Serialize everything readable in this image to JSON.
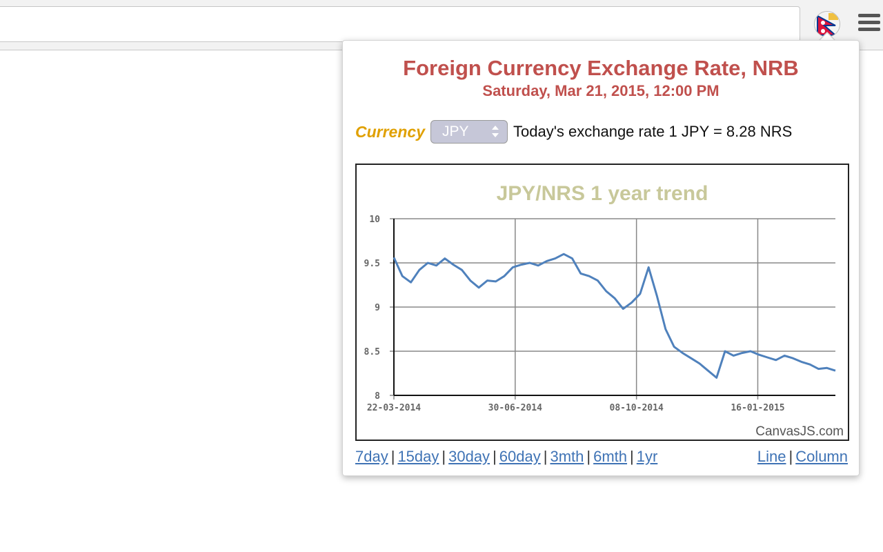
{
  "popup": {
    "title": "Foreign Currency Exchange Rate, NRB",
    "subtitle": "Saturday, Mar 21, 2015, 12:00 PM",
    "currency_label": "Currency",
    "selected_currency": "JPY",
    "rate_text": "Today's exchange rate 1 JPY = 8.28 NRS",
    "range_links": [
      "7day",
      "15day",
      "30day",
      "60day",
      "3mth",
      "6mth",
      "1yr"
    ],
    "type_links": [
      "Line",
      "Column"
    ]
  },
  "chart_data": {
    "type": "line",
    "title": "JPY/NRS 1 year trend",
    "credit": "CanvasJS.com",
    "x_ticks": [
      "22-03-2014",
      "30-06-2014",
      "08-10-2014",
      "16-01-2015"
    ],
    "y_ticks": [
      "8",
      "8.5",
      "9",
      "9.5",
      "10"
    ],
    "ylim": [
      8,
      10
    ],
    "x_range": [
      "2014-03-22",
      "2015-03-21"
    ],
    "grid": true,
    "series": [
      {
        "x": [
          "2014-03-22",
          "2014-03-29",
          "2014-04-05",
          "2014-04-12",
          "2014-04-19",
          "2014-04-26",
          "2014-05-03",
          "2014-05-10",
          "2014-05-17",
          "2014-05-24",
          "2014-05-31",
          "2014-06-07",
          "2014-06-14",
          "2014-06-21",
          "2014-06-28",
          "2014-07-05",
          "2014-07-12",
          "2014-07-19",
          "2014-07-26",
          "2014-08-02",
          "2014-08-09",
          "2014-08-16",
          "2014-08-23",
          "2014-08-30",
          "2014-09-06",
          "2014-09-13",
          "2014-09-20",
          "2014-09-27",
          "2014-10-04",
          "2014-10-11",
          "2014-10-18",
          "2014-10-25",
          "2014-11-01",
          "2014-11-08",
          "2014-11-15",
          "2014-11-22",
          "2014-11-29",
          "2014-12-06",
          "2014-12-13",
          "2014-12-20",
          "2014-12-27",
          "2015-01-03",
          "2015-01-10",
          "2015-01-17",
          "2015-01-24",
          "2015-01-31",
          "2015-02-07",
          "2015-02-14",
          "2015-02-21",
          "2015-02-28",
          "2015-03-07",
          "2015-03-14",
          "2015-03-21"
        ],
        "values": [
          9.56,
          9.35,
          9.28,
          9.42,
          9.5,
          9.47,
          9.55,
          9.48,
          9.42,
          9.3,
          9.22,
          9.3,
          9.29,
          9.35,
          9.45,
          9.48,
          9.5,
          9.47,
          9.52,
          9.55,
          9.6,
          9.55,
          9.38,
          9.35,
          9.3,
          9.18,
          9.1,
          8.98,
          9.05,
          9.15,
          9.45,
          9.12,
          8.75,
          8.55,
          8.48,
          8.42,
          8.36,
          8.28,
          8.2,
          8.5,
          8.45,
          8.48,
          8.5,
          8.46,
          8.43,
          8.4,
          8.45,
          8.42,
          8.38,
          8.35,
          8.3,
          8.31,
          8.28
        ]
      }
    ]
  }
}
